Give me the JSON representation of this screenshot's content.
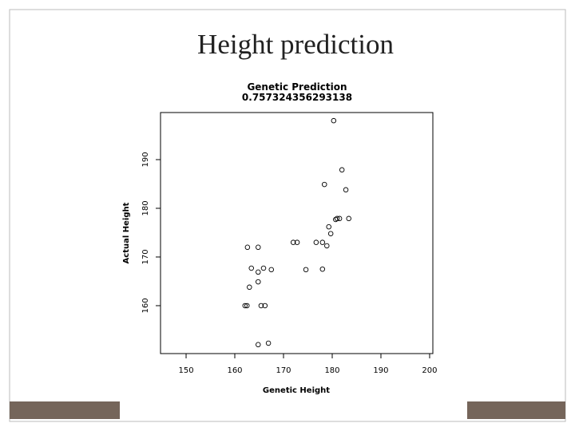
{
  "slide_title": "Height prediction",
  "chart_data": {
    "type": "scatter",
    "title": "Genetic Prediction",
    "subtitle": "0.757324356293138",
    "xlabel": "Genetic Height",
    "ylabel": "Actual Height",
    "color": "#000000",
    "x": [
      180.3,
      182.0,
      178.4,
      182.8,
      180.7,
      181.0,
      181.5,
      183.4,
      179.3,
      179.7,
      172.0,
      172.8,
      176.7,
      178.0,
      178.9,
      162.6,
      164.8,
      163.4,
      165.9,
      167.5,
      174.6,
      178.0,
      164.8,
      164.8,
      163.0,
      162.1,
      162.5,
      165.4,
      166.2,
      166.9,
      164.8
    ],
    "values": [
      198.0,
      187.9,
      184.9,
      183.8,
      177.7,
      177.9,
      177.9,
      177.9,
      176.2,
      174.8,
      173.0,
      173.0,
      173.0,
      173.0,
      172.3,
      172.0,
      172.0,
      167.7,
      167.7,
      167.4,
      167.4,
      167.5,
      166.9,
      164.9,
      163.8,
      160,
      160,
      160,
      160,
      152.3,
      152.0
    ],
    "xlim": [
      144.75,
      200.66
    ],
    "ylim": [
      150.16,
      199.67
    ],
    "xticks": [
      150,
      160,
      170,
      180,
      190,
      200
    ],
    "yticks": [
      160,
      170,
      180,
      190
    ]
  }
}
